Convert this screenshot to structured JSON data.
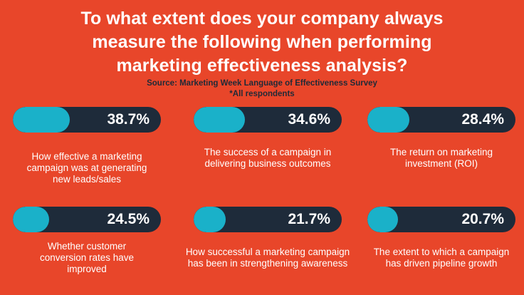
{
  "header": {
    "title": "To what extent does your company always\nmeasure the following when performing\nmarketing effectiveness analysis?",
    "source": "Source: Marketing Week Language of Effectiveness Survey",
    "note": "*All respondents"
  },
  "colors": {
    "background": "#e8462a",
    "bar_track": "#1e2b3a",
    "bar_fill": "#1ab1c9",
    "source_text": "#1f2a37"
  },
  "chart_data": {
    "type": "bar",
    "title": "To what extent does your company always measure the following when performing marketing effectiveness analysis?",
    "subtitle": "Source: Marketing Week Language of Effectiveness Survey",
    "annotation": "*All respondents",
    "unit": "%",
    "ylim": [
      0,
      100
    ],
    "categories": [
      "How effective a marketing campaign was at generating new leads/sales",
      "The success of a campaign in delivering business outcomes",
      "The return on marketing investment (ROI)",
      "Whether customer conversion rates have improved",
      "How successful a marketing campaign has been in strengthening awareness",
      "The extent to which a campaign has driven pipeline growth"
    ],
    "values": [
      38.7,
      34.6,
      28.4,
      24.5,
      21.7,
      20.7
    ],
    "value_labels": [
      "38.7%",
      "34.6%",
      "28.4%",
      "24.5%",
      "21.7%",
      "20.7%"
    ],
    "label_lines": [
      [
        "How effective a marketing",
        "campaign was at generating",
        "new leads/sales"
      ],
      [
        "The success of a campaign in",
        "delivering business outcomes"
      ],
      [
        "The return on marketing",
        "investment (ROI)"
      ],
      [
        "Whether customer",
        "conversion rates have",
        "improved"
      ],
      [
        "How successful a marketing campaign",
        "has been in strengthening awareness"
      ],
      [
        "The extent to which a campaign",
        "has driven pipeline growth"
      ]
    ]
  }
}
